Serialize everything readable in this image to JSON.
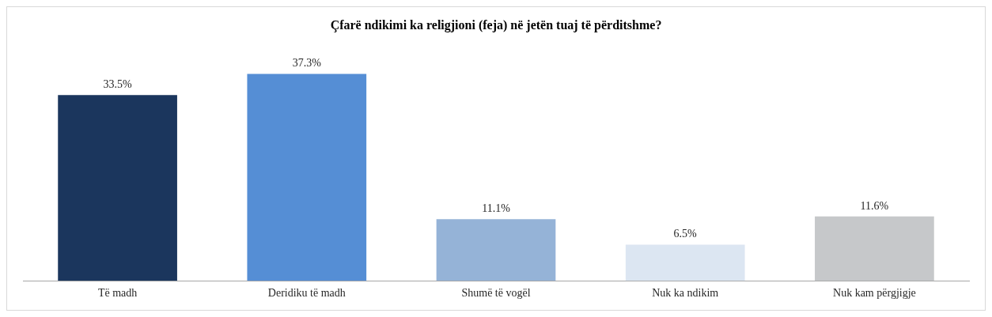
{
  "chart_data": {
    "type": "bar",
    "title": "Çfarë ndikimi ka religjioni (feja) në jetën tuaj të përditshme?",
    "categories": [
      "Të madh",
      "Deridiku të madh",
      "Shumë të vogël",
      "Nuk ka ndikim",
      "Nuk kam përgjigje"
    ],
    "values": [
      33.5,
      37.3,
      11.1,
      6.5,
      11.6
    ],
    "colors": [
      "#1b365d",
      "#558ed5",
      "#95b3d7",
      "#dce6f2",
      "#c6c8ca"
    ],
    "value_labels": [
      "33.5%",
      "37.3%",
      "11.1%",
      "6.5%",
      "11.6%"
    ],
    "tick_labels": "x",
    "grid": false,
    "legend": false
  }
}
